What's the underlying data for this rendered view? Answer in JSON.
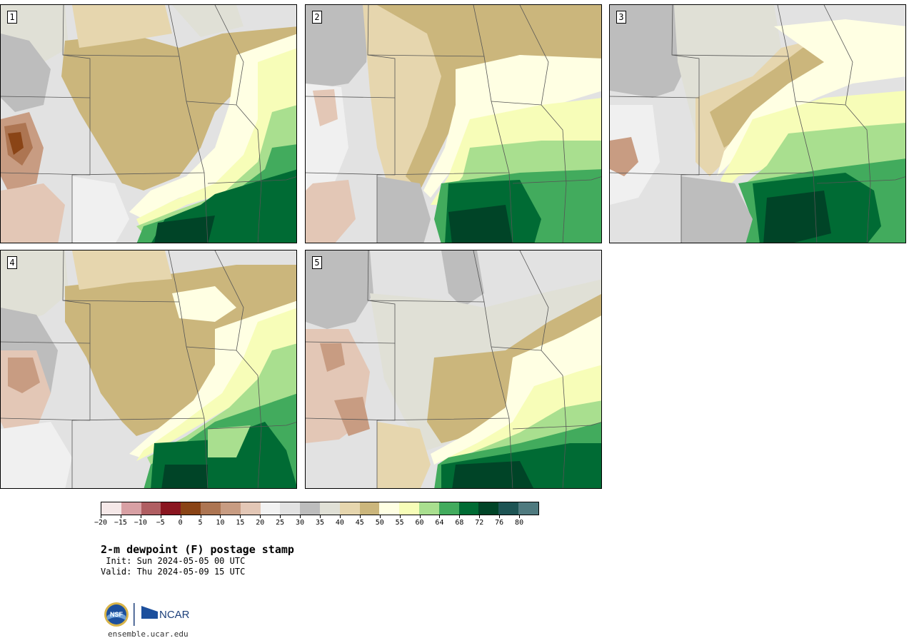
{
  "panels": [
    {
      "label": "1"
    },
    {
      "label": "2"
    },
    {
      "label": "3"
    },
    {
      "label": "4"
    },
    {
      "label": "5"
    }
  ],
  "colorbar": {
    "colors": [
      "#f5e8e8",
      "#d8a0a4",
      "#b05e62",
      "#8a1620",
      "#8a4416",
      "#ad7552",
      "#c89c82",
      "#e3c7b6",
      "#f2f2f2",
      "#e2e2e2",
      "#bdbdbd",
      "#e0e0d6",
      "#e6d6ae",
      "#cbb67c",
      "#ffffe3",
      "#f7fdb8",
      "#a9df8f",
      "#42ab5d",
      "#006b34",
      "#004427",
      "#1d5454",
      "#4f7a7f"
    ],
    "tick_labels": [
      "−20",
      "−15",
      "−10",
      "−5",
      "0",
      "5",
      "10",
      "15",
      "20",
      "25",
      "30",
      "35",
      "40",
      "45",
      "50",
      "55",
      "60",
      "64",
      "68",
      "72",
      "76",
      "80"
    ]
  },
  "map_colors": {
    "background": "#e2e2e2",
    "dry_gray": "#bdbdbd",
    "light_gray": "#f0f0f0",
    "pale_tan": "#e6d6ae",
    "tan": "#cbb67c",
    "brown": "#c89c82",
    "dark_brown": "#8a4416",
    "cream": "#ffffe3",
    "light_yellow": "#f7fdb8",
    "light_green": "#a9df8f",
    "green": "#42ab5d",
    "dark_green": "#006b34",
    "darkest_green": "#004427"
  },
  "title": "2-m dewpoint (F) postage stamp",
  "init": " Init: Sun 2024-05-05 00 UTC",
  "valid": "Valid: Thu 2024-05-09 15 UTC",
  "logos": {
    "nsf": "NSF",
    "ncar": "NCAR"
  },
  "url": "ensemble.ucar.edu"
}
